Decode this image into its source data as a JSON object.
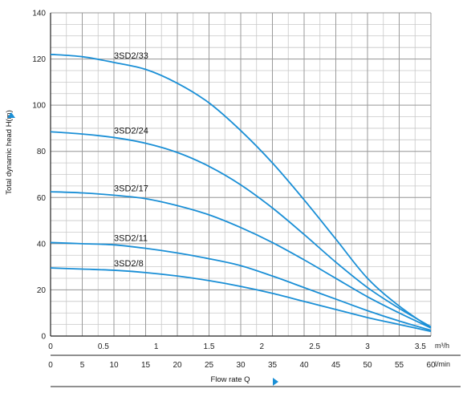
{
  "chart_data": {
    "type": "line",
    "ylabel": "Total dynamic head H(m)",
    "xlabel": "Flow rate Q",
    "y_axis": {
      "range": [
        0,
        140
      ],
      "major_step": 20,
      "minor_step": 5,
      "tick_labels": [
        "0",
        "20",
        "40",
        "60",
        "80",
        "100",
        "120",
        "140"
      ]
    },
    "x_axis_top": {
      "unit": "m³/h",
      "range": [
        0,
        3.6
      ],
      "tick_labels": [
        "0",
        "0.5",
        "1",
        "1.5",
        "2",
        "2.5",
        "3",
        "3.5"
      ],
      "tick_values": [
        0,
        0.5,
        1,
        1.5,
        2,
        2.5,
        3,
        3.5
      ]
    },
    "x_axis_bottom": {
      "unit": "l/min",
      "range": [
        0,
        60
      ],
      "tick_labels": [
        "0",
        "5",
        "10",
        "15",
        "20",
        "25",
        "30",
        "35",
        "40",
        "45",
        "50",
        "55",
        "60"
      ],
      "tick_values": [
        0,
        5,
        10,
        15,
        20,
        25,
        30,
        35,
        40,
        45,
        50,
        55,
        60
      ]
    },
    "grid": true,
    "line_color": "#1a8fd6",
    "series": [
      {
        "name": "3SD2/33",
        "x": [
          0,
          5,
          10,
          15,
          20,
          25,
          30,
          35,
          40,
          45,
          50,
          55,
          60
        ],
        "y": [
          122,
          121,
          118.5,
          115.5,
          109.5,
          101,
          89,
          75,
          59,
          42,
          25,
          13,
          3.5
        ]
      },
      {
        "name": "3SD2/24",
        "x": [
          0,
          5,
          10,
          15,
          20,
          25,
          30,
          35,
          40,
          45,
          50,
          55,
          60
        ],
        "y": [
          88.5,
          87.5,
          86,
          83.5,
          79.5,
          73.5,
          65.5,
          55.5,
          44,
          32,
          21,
          12,
          4
        ]
      },
      {
        "name": "3SD2/17",
        "x": [
          0,
          5,
          10,
          15,
          20,
          25,
          30,
          35,
          40,
          45,
          50,
          55,
          60
        ],
        "y": [
          62.5,
          62,
          61,
          59.5,
          56.5,
          52.5,
          47,
          40.5,
          33,
          25,
          17,
          10,
          3.5
        ]
      },
      {
        "name": "3SD2/11",
        "x": [
          0,
          5,
          10,
          15,
          20,
          25,
          30,
          35,
          40,
          45,
          50,
          55,
          60
        ],
        "y": [
          40.5,
          40,
          39.5,
          38,
          36,
          33.5,
          30.5,
          26,
          21,
          16,
          11,
          6.5,
          2.5
        ]
      },
      {
        "name": "3SD2/8",
        "x": [
          0,
          5,
          10,
          15,
          20,
          25,
          30,
          35,
          40,
          45,
          50,
          55,
          60
        ],
        "y": [
          29.5,
          29,
          28.5,
          27.5,
          26,
          24,
          21.5,
          18.5,
          15,
          11.5,
          8,
          5,
          2
        ]
      }
    ]
  }
}
